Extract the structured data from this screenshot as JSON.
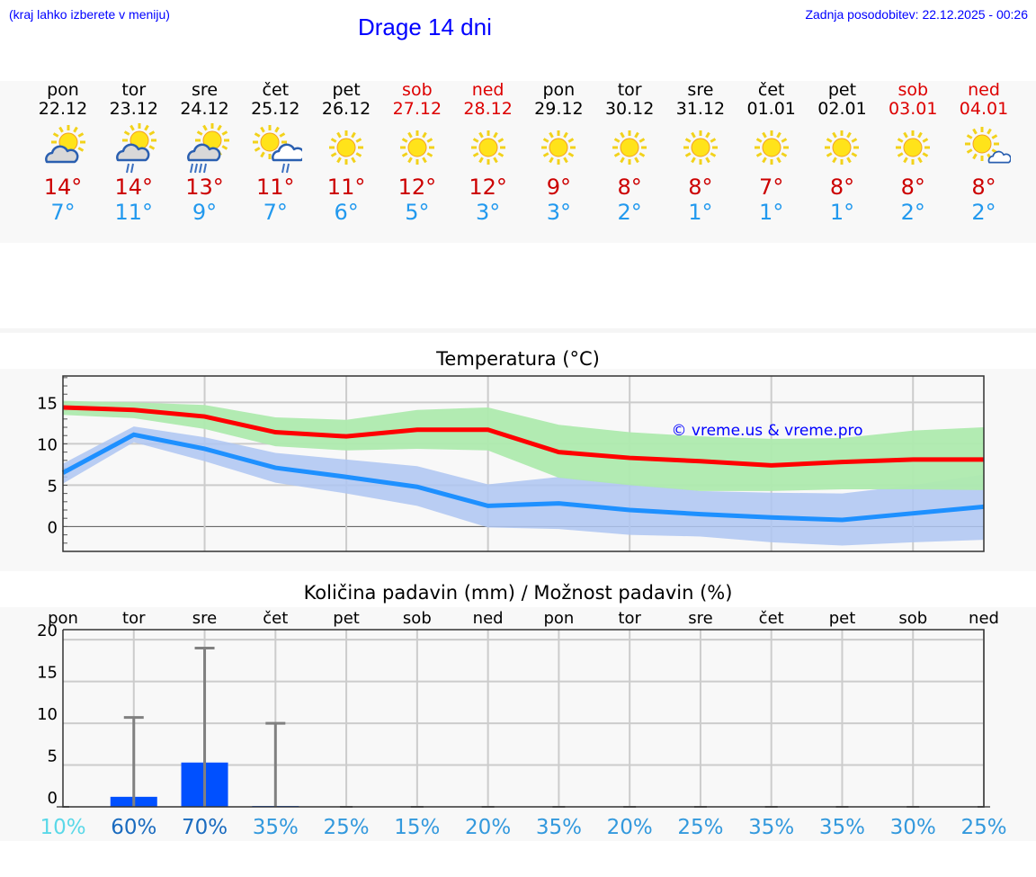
{
  "header": {
    "hint": "(kraj lahko izberete v meniju)",
    "title": "Drage 14 dni",
    "updated": "Zadnja posodobitev: 22.12.2025 - 00:26"
  },
  "days": [
    {
      "name": "pon",
      "date": "22.12",
      "weekend": false,
      "icon": "partly-cloudy",
      "max": "14°",
      "min": "7°"
    },
    {
      "name": "tor",
      "date": "23.12",
      "weekend": false,
      "icon": "partly-cloudy-rain",
      "max": "14°",
      "min": "11°"
    },
    {
      "name": "sre",
      "date": "24.12",
      "weekend": false,
      "icon": "partly-cloudy-heavy-rain",
      "max": "13°",
      "min": "9°"
    },
    {
      "name": "čet",
      "date": "25.12",
      "weekend": false,
      "icon": "sun-cloud-rain",
      "max": "11°",
      "min": "7°"
    },
    {
      "name": "pet",
      "date": "26.12",
      "weekend": false,
      "icon": "sunny",
      "max": "11°",
      "min": "6°"
    },
    {
      "name": "sob",
      "date": "27.12",
      "weekend": true,
      "icon": "sunny",
      "max": "12°",
      "min": "5°"
    },
    {
      "name": "ned",
      "date": "28.12",
      "weekend": true,
      "icon": "sunny",
      "max": "12°",
      "min": "3°"
    },
    {
      "name": "pon",
      "date": "29.12",
      "weekend": false,
      "icon": "sunny",
      "max": "9°",
      "min": "3°"
    },
    {
      "name": "tor",
      "date": "30.12",
      "weekend": false,
      "icon": "sunny",
      "max": "8°",
      "min": "2°"
    },
    {
      "name": "sre",
      "date": "31.12",
      "weekend": false,
      "icon": "sunny",
      "max": "8°",
      "min": "1°"
    },
    {
      "name": "čet",
      "date": "01.01",
      "weekend": false,
      "icon": "sunny",
      "max": "7°",
      "min": "1°"
    },
    {
      "name": "pet",
      "date": "02.01",
      "weekend": false,
      "icon": "sunny",
      "max": "8°",
      "min": "1°"
    },
    {
      "name": "sob",
      "date": "03.01",
      "weekend": true,
      "icon": "sunny",
      "max": "8°",
      "min": "2°"
    },
    {
      "name": "ned",
      "date": "04.01",
      "weekend": true,
      "icon": "sun-small-cloud",
      "max": "8°",
      "min": "2°"
    }
  ],
  "chart_data": [
    {
      "type": "line",
      "title": "Temperatura (°C)",
      "watermark": "© vreme.us & vreme.pro",
      "ylim": [
        -3,
        18.2
      ],
      "yticks": [
        0,
        5,
        10,
        15
      ],
      "grid": true,
      "colors": {
        "max": "#ff0000",
        "min": "#1e90ff",
        "max_band": "#aeeaae",
        "min_band": "#aec6f2"
      },
      "series": [
        {
          "name": "max",
          "values": [
            14.4,
            14.1,
            13.3,
            11.4,
            10.9,
            11.7,
            11.7,
            9.0,
            8.3,
            7.9,
            7.4,
            7.8,
            8.1,
            8.1
          ],
          "band_high": [
            15.2,
            15.0,
            14.7,
            13.2,
            12.9,
            14.1,
            14.4,
            12.3,
            11.4,
            10.9,
            10.6,
            10.7,
            11.6,
            12.0
          ],
          "band_low": [
            13.5,
            13.1,
            11.8,
            9.7,
            9.2,
            9.4,
            9.2,
            5.9,
            5.0,
            4.3,
            4.3,
            4.5,
            4.5,
            4.4
          ]
        },
        {
          "name": "min",
          "values": [
            6.5,
            11.1,
            9.4,
            7.1,
            6.0,
            4.8,
            2.5,
            2.8,
            2.0,
            1.5,
            1.1,
            0.8,
            1.6,
            2.4
          ],
          "band_high": [
            7.6,
            12.1,
            10.8,
            8.9,
            8.1,
            7.3,
            5.1,
            6.0,
            5.2,
            4.3,
            4.1,
            4.0,
            5.0,
            6.3
          ],
          "band_low": [
            5.2,
            10.2,
            7.9,
            5.3,
            4.0,
            2.5,
            -0.1,
            -0.3,
            -1.0,
            -1.2,
            -1.9,
            -2.3,
            -1.9,
            -1.6
          ]
        }
      ]
    },
    {
      "type": "bar",
      "title": "Količina padavin (mm) / Možnost padavin (%)",
      "ylim": [
        0,
        21.2
      ],
      "yticks": [
        0,
        5,
        10,
        15,
        20
      ],
      "grid": true,
      "categories": [
        "pon",
        "tor",
        "sre",
        "čet",
        "pet",
        "sob",
        "ned",
        "pon",
        "tor",
        "sre",
        "čet",
        "pet",
        "sob",
        "ned"
      ],
      "values": [
        0,
        1.2,
        5.3,
        0.1,
        0,
        0,
        0,
        0,
        0,
        0,
        0,
        0,
        0,
        0
      ],
      "max_values": [
        0,
        10.7,
        19,
        10,
        0,
        0,
        0,
        0,
        0,
        0,
        0,
        0,
        0,
        0
      ],
      "probability": [
        "10%",
        "60%",
        "70%",
        "35%",
        "25%",
        "15%",
        "20%",
        "35%",
        "20%",
        "25%",
        "35%",
        "35%",
        "30%",
        "25%"
      ],
      "prob_colors": [
        "#5ad8e8",
        "#1a6bbf",
        "#1a6bbf",
        "#3399dd",
        "#3399dd",
        "#3399dd",
        "#3399dd",
        "#3399dd",
        "#3399dd",
        "#3399dd",
        "#3399dd",
        "#3399dd",
        "#3399dd",
        "#3399dd"
      ],
      "bar_color": "#0050ff"
    }
  ]
}
